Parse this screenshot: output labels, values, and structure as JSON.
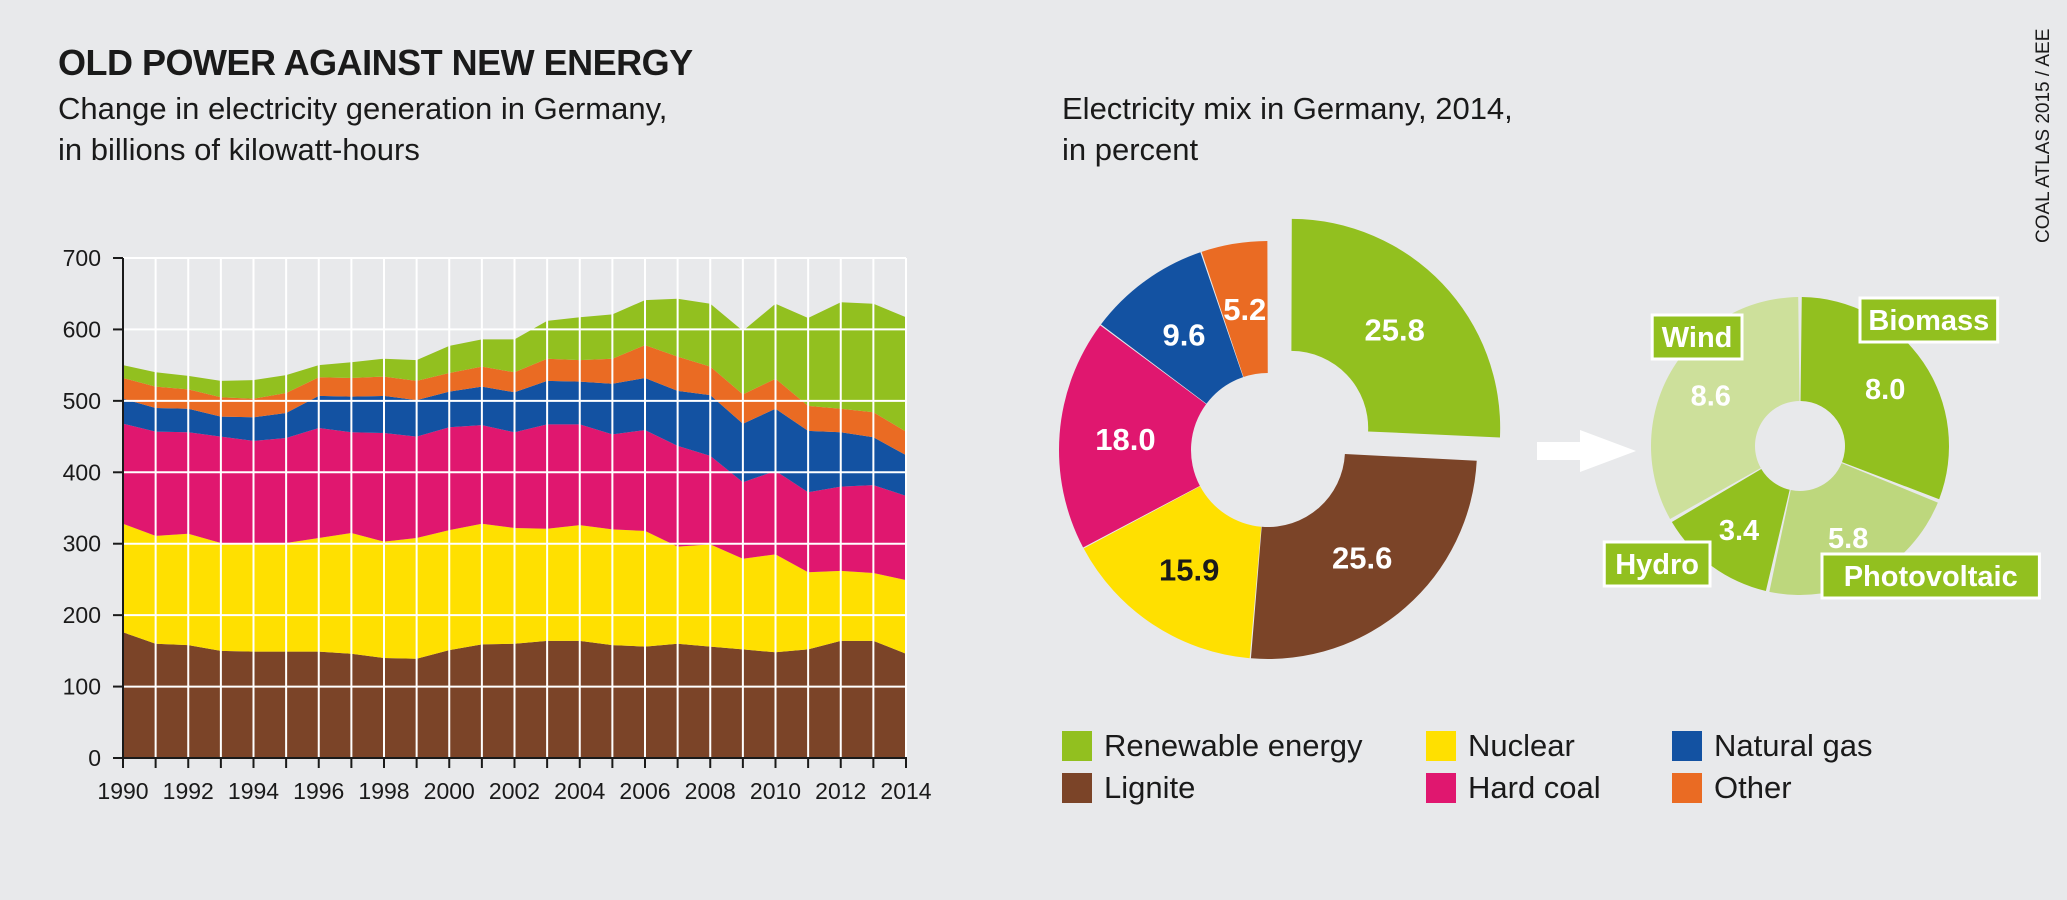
{
  "title": "OLD POWER AGAINST NEW ENERGY",
  "left_subtitle": [
    "Change in electricity generation in Germany,",
    "in billions of kilowatt-hours"
  ],
  "right_subtitle": [
    "Electricity mix in Germany, 2014,",
    "in percent"
  ],
  "source": "COAL ATLAS 2015 / AEE",
  "colors": {
    "renewable": "#92c01f",
    "lignite": "#7b4428",
    "nuclear": "#ffe000",
    "hard_coal": "#e0176f",
    "natural_gas": "#1352a2",
    "other": "#ea6b23",
    "wind": "#cde09b",
    "photovoltaic": "#bdd77d",
    "arrow": "#ffffff"
  },
  "legend": [
    {
      "label": "Renewable energy",
      "color_key": "renewable"
    },
    {
      "label": "Lignite",
      "color_key": "lignite"
    },
    {
      "label": "Nuclear",
      "color_key": "nuclear"
    },
    {
      "label": "Hard coal",
      "color_key": "hard_coal"
    },
    {
      "label": "Natural gas",
      "color_key": "natural_gas"
    },
    {
      "label": "Other",
      "color_key": "other"
    }
  ],
  "chart_data": [
    {
      "type": "area",
      "stacked": true,
      "unit": "billions of kilowatt-hours",
      "x": [
        1990,
        1991,
        1992,
        1993,
        1994,
        1995,
        1996,
        1997,
        1998,
        1999,
        2000,
        2001,
        2002,
        2003,
        2004,
        2005,
        2006,
        2007,
        2008,
        2009,
        2010,
        2011,
        2012,
        2013,
        2014
      ],
      "x_tick_labels": [
        "1990",
        "1992",
        "1994",
        "1996",
        "1998",
        "2000",
        "2002",
        "2004",
        "2006",
        "2008",
        "2010",
        "2012",
        "2014"
      ],
      "y_ticks": [
        0,
        100,
        200,
        300,
        400,
        500,
        600,
        700
      ],
      "ylim": [
        0,
        700
      ],
      "grid": true,
      "series": [
        {
          "key": "lignite",
          "values": [
            176,
            160,
            158,
            150,
            149,
            149,
            149,
            146,
            140,
            139,
            151,
            159,
            160,
            164,
            164,
            158,
            156,
            160,
            156,
            152,
            148,
            152,
            164,
            164,
            146
          ]
        },
        {
          "key": "nuclear",
          "values": [
            152,
            151,
            156,
            151,
            151,
            152,
            159,
            169,
            163,
            169,
            168,
            169,
            162,
            157,
            162,
            162,
            162,
            136,
            143,
            127,
            137,
            108,
            98,
            95,
            103
          ]
        },
        {
          "key": "hard_coal",
          "values": [
            140,
            146,
            142,
            149,
            144,
            147,
            154,
            141,
            152,
            142,
            144,
            138,
            134,
            146,
            141,
            133,
            141,
            141,
            124,
            107,
            117,
            112,
            118,
            123,
            118
          ]
        },
        {
          "key": "natural_gas",
          "values": [
            35,
            33,
            33,
            28,
            33,
            35,
            45,
            50,
            52,
            51,
            50,
            54,
            56,
            61,
            60,
            71,
            73,
            77,
            85,
            82,
            87,
            86,
            76,
            67,
            57
          ]
        },
        {
          "key": "other",
          "values": [
            29,
            30,
            27,
            27,
            26,
            28,
            26,
            26,
            27,
            27,
            26,
            28,
            28,
            31,
            30,
            35,
            46,
            48,
            40,
            41,
            42,
            35,
            33,
            35,
            33
          ]
        },
        {
          "key": "renewable",
          "values": [
            18,
            20,
            19,
            23,
            26,
            25,
            17,
            22,
            25,
            29,
            38,
            38,
            46,
            53,
            60,
            62,
            63,
            81,
            88,
            89,
            105,
            123,
            149,
            152,
            160
          ]
        }
      ]
    },
    {
      "type": "pie",
      "style": "donut",
      "slices": [
        {
          "key": "renewable",
          "value": 25.8,
          "label": "25.8",
          "exploded": true
        },
        {
          "key": "lignite",
          "value": 25.6,
          "label": "25.6"
        },
        {
          "key": "nuclear",
          "value": 15.9,
          "label": "15.9"
        },
        {
          "key": "hard_coal",
          "value": 18.0,
          "label": "18.0"
        },
        {
          "key": "natural_gas",
          "value": 9.6,
          "label": "9.6"
        },
        {
          "key": "other",
          "value": 5.2,
          "label": "5.2"
        }
      ]
    },
    {
      "type": "pie",
      "style": "donut",
      "slices": [
        {
          "name": "Biomass",
          "key": "renewable",
          "value": 8.0,
          "label": "8.0"
        },
        {
          "name": "Photovoltaic",
          "key": "photovoltaic",
          "value": 5.8,
          "label": "5.8"
        },
        {
          "name": "Hydro",
          "key": "renewable",
          "value": 3.4,
          "label": "3.4"
        },
        {
          "name": "Wind",
          "key": "wind",
          "value": 8.6,
          "label": "8.6"
        }
      ]
    }
  ]
}
